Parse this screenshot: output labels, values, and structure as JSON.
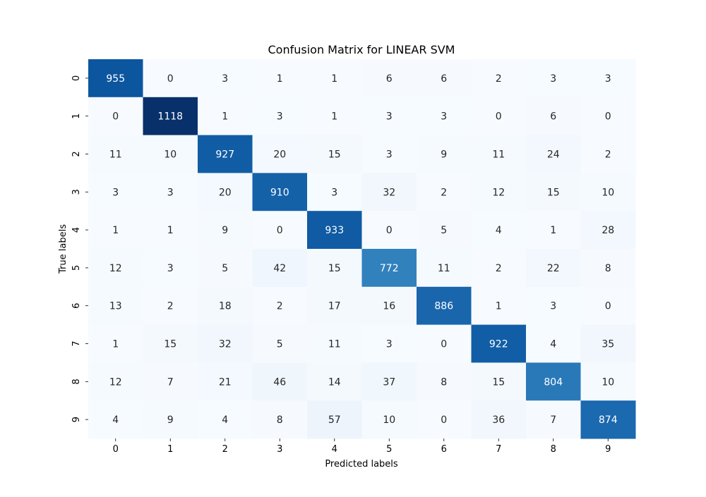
{
  "chart_data": {
    "type": "heatmap",
    "title": "Confusion Matrix for LINEAR SVM",
    "xlabel": "Predicted labels",
    "ylabel": "True labels",
    "x_categories": [
      "0",
      "1",
      "2",
      "3",
      "4",
      "5",
      "6",
      "7",
      "8",
      "9"
    ],
    "y_categories": [
      "0",
      "1",
      "2",
      "3",
      "4",
      "5",
      "6",
      "7",
      "8",
      "9"
    ],
    "values": [
      [
        955,
        0,
        3,
        1,
        1,
        6,
        6,
        2,
        3,
        3
      ],
      [
        0,
        1118,
        1,
        3,
        1,
        3,
        3,
        0,
        6,
        0
      ],
      [
        11,
        10,
        927,
        20,
        15,
        3,
        9,
        11,
        24,
        2
      ],
      [
        3,
        3,
        20,
        910,
        3,
        32,
        2,
        12,
        15,
        10
      ],
      [
        1,
        1,
        9,
        0,
        933,
        0,
        5,
        4,
        1,
        28
      ],
      [
        12,
        3,
        5,
        42,
        15,
        772,
        11,
        2,
        22,
        8
      ],
      [
        13,
        2,
        18,
        2,
        17,
        16,
        886,
        1,
        3,
        0
      ],
      [
        1,
        15,
        32,
        5,
        11,
        3,
        0,
        922,
        4,
        35
      ],
      [
        12,
        7,
        21,
        46,
        14,
        37,
        8,
        15,
        804,
        10
      ],
      [
        4,
        9,
        4,
        8,
        57,
        10,
        0,
        36,
        7,
        874
      ]
    ],
    "color_scale": "Blues",
    "color_range": [
      0,
      1118
    ],
    "colorbar": false,
    "grid": false
  }
}
